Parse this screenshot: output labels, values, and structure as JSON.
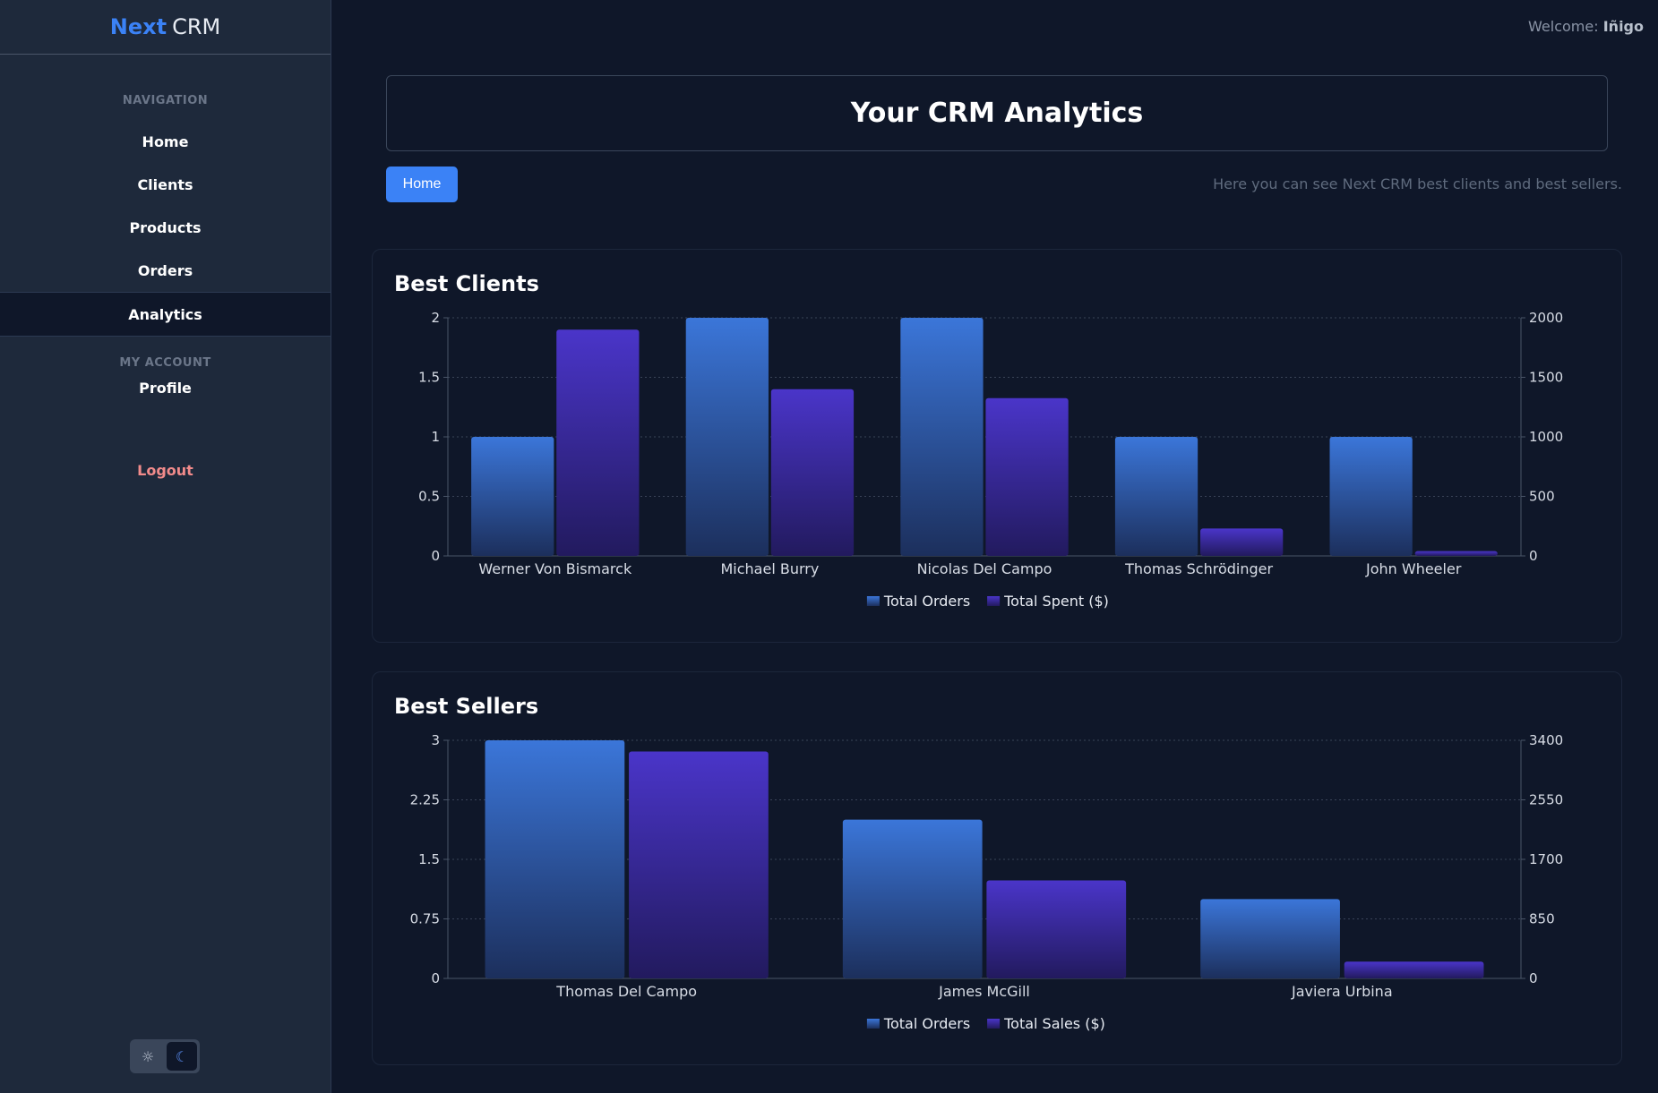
{
  "brand": {
    "part1": "Next",
    "part2": "CRM"
  },
  "sidebar": {
    "nav_heading": "NAVIGATION",
    "nav_items": [
      {
        "label": "Home"
      },
      {
        "label": "Clients"
      },
      {
        "label": "Products"
      },
      {
        "label": "Orders"
      },
      {
        "label": "Analytics"
      }
    ],
    "account_heading": "MY ACCOUNT",
    "account_items": [
      {
        "label": "Profile"
      }
    ],
    "logout_label": "Logout",
    "theme_light_icon": "sun-icon",
    "theme_dark_icon": "moon-icon"
  },
  "header": {
    "welcome_prefix": "Welcome:",
    "welcome_user": "Iñigo",
    "title": "Your CRM Analytics",
    "breadcrumb_home": "Home",
    "subtitle": "Here you can see Next CRM best clients and best sellers."
  },
  "colors": {
    "accent": "#3b82f6",
    "series_orders": "#3b76d9",
    "series_money": "#4a35c9"
  },
  "chart_data": [
    {
      "type": "bar",
      "title": "Best Clients",
      "categories": [
        "Werner Von Bismarck",
        "Michael Burry",
        "Nicolas Del Campo",
        "Thomas Schrödinger",
        "John Wheeler"
      ],
      "series": [
        {
          "name": "Total Orders",
          "axis": "left",
          "values": [
            1,
            2,
            2,
            1,
            1
          ]
        },
        {
          "name": "Total Spent ($)",
          "axis": "right",
          "values": [
            1900,
            1400,
            1325,
            230,
            40
          ]
        }
      ],
      "ylim_left": [
        0,
        2
      ],
      "yticks_left": [
        "0",
        "0.5",
        "1",
        "1.5",
        "2"
      ],
      "ylim_right": [
        0,
        2000
      ],
      "yticks_right": [
        "0",
        "500",
        "1000",
        "1500",
        "2000"
      ],
      "legend": "bottom-center",
      "grid": true
    },
    {
      "type": "bar",
      "title": "Best Sellers",
      "categories": [
        "Thomas Del Campo",
        "James McGill",
        "Javiera Urbina"
      ],
      "series": [
        {
          "name": "Total Orders",
          "axis": "left",
          "values": [
            3,
            2,
            1
          ]
        },
        {
          "name": "Total Sales ($)",
          "axis": "right",
          "values": [
            3240,
            1400,
            240
          ]
        }
      ],
      "ylim_left": [
        0,
        3
      ],
      "yticks_left": [
        "0",
        "0.75",
        "1.5",
        "2.25",
        "3"
      ],
      "ylim_right": [
        0,
        3400
      ],
      "yticks_right": [
        "0",
        "850",
        "1700",
        "2550",
        "3400"
      ],
      "legend": "bottom-center",
      "grid": true
    }
  ]
}
